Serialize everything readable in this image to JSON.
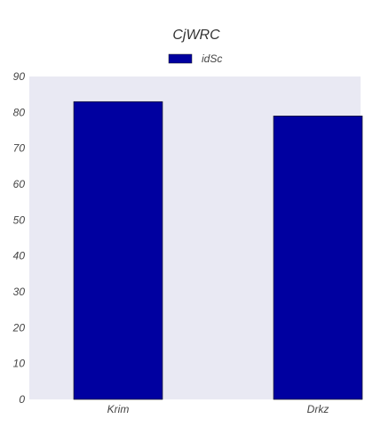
{
  "chart_data": {
    "type": "bar",
    "title": "CjWRC",
    "xlabel": "",
    "ylabel": "",
    "categories": [
      "Krim",
      "Drkz"
    ],
    "series": [
      {
        "name": "idSc",
        "values": [
          83,
          79
        ],
        "color": "#0000a0"
      }
    ],
    "ylim": [
      0,
      90
    ],
    "yticks": [
      0,
      10,
      20,
      30,
      40,
      50,
      60,
      70,
      80,
      90
    ],
    "grid": false,
    "legend": "top-center",
    "plot_background": "#e9e9f3"
  }
}
